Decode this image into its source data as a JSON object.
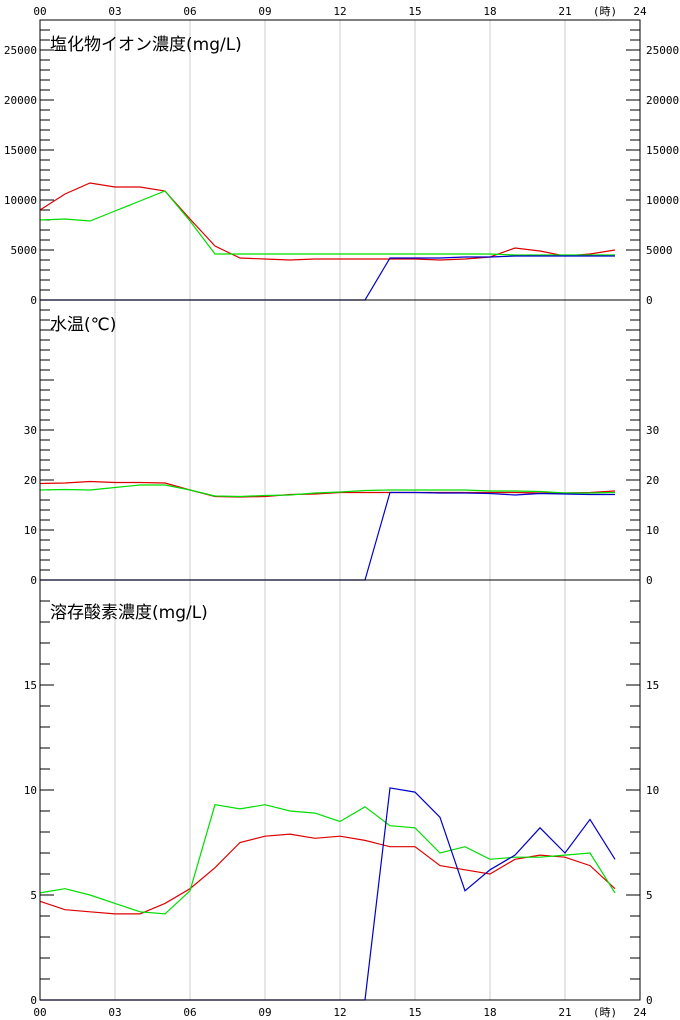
{
  "x_axis": {
    "ticks": [
      "00",
      "03",
      "06",
      "09",
      "12",
      "15",
      "18",
      "21",
      "24"
    ],
    "unit_label": "(時)"
  },
  "colors": {
    "red": "#dd0000",
    "green": "#00dd00",
    "blue": "#0000cc",
    "grid": "#cccccc"
  },
  "chart_data": [
    {
      "type": "line",
      "title": "塩化物イオン濃度(mg/L)",
      "x": [
        0,
        1,
        2,
        3,
        4,
        5,
        6,
        7,
        8,
        9,
        10,
        11,
        12,
        13,
        14,
        15,
        16,
        17,
        18,
        19,
        20,
        21,
        22,
        23
      ],
      "ylim": [
        0,
        28000
      ],
      "yticks": [
        0,
        5000,
        10000,
        15000,
        20000,
        25000
      ],
      "series": [
        {
          "color": "red",
          "values": [
            9000,
            10600,
            11700,
            11300,
            11300,
            10900,
            8100,
            5400,
            4200,
            4100,
            4000,
            4100,
            4100,
            4100,
            4100,
            4100,
            4000,
            4100,
            4300,
            5200,
            4900,
            4400,
            4600,
            5000
          ]
        },
        {
          "color": "green",
          "values": [
            8000,
            8100,
            7900,
            8900,
            9900,
            10900,
            7900,
            4600,
            4600,
            4600,
            4600,
            4600,
            4600,
            4600,
            4600,
            4600,
            4600,
            4600,
            4600,
            4500,
            4500,
            4500,
            4500,
            4500
          ]
        },
        {
          "color": "blue",
          "values": [
            0,
            0,
            0,
            0,
            0,
            0,
            0,
            0,
            0,
            0,
            0,
            0,
            0,
            0,
            4200,
            4200,
            4200,
            4300,
            4300,
            4400,
            4400,
            4400,
            4400,
            4400
          ]
        }
      ]
    },
    {
      "type": "line",
      "title": "水温(℃)",
      "x": [
        0,
        1,
        2,
        3,
        4,
        5,
        6,
        7,
        8,
        9,
        10,
        11,
        12,
        13,
        14,
        15,
        16,
        17,
        18,
        19,
        20,
        21,
        22,
        23
      ],
      "ylim": [
        0,
        56
      ],
      "yticks": [
        0,
        10,
        20,
        30
      ],
      "series": [
        {
          "color": "red",
          "values": [
            19.3,
            19.4,
            19.7,
            19.5,
            19.5,
            19.4,
            18.0,
            16.7,
            16.6,
            16.7,
            17.1,
            17.2,
            17.5,
            17.5,
            17.5,
            17.5,
            17.5,
            17.5,
            17.5,
            17.5,
            17.4,
            17.4,
            17.5,
            17.8
          ]
        },
        {
          "color": "green",
          "values": [
            18.0,
            18.1,
            18.0,
            18.5,
            19.0,
            19.0,
            18.0,
            16.8,
            16.7,
            16.9,
            17.0,
            17.4,
            17.6,
            17.9,
            18.0,
            18.0,
            18.0,
            18.0,
            17.8,
            17.8,
            17.7,
            17.4,
            17.4,
            17.5
          ]
        },
        {
          "color": "blue",
          "values": [
            0,
            0,
            0,
            0,
            0,
            0,
            0,
            0,
            0,
            0,
            0,
            0,
            0,
            0,
            17.5,
            17.5,
            17.4,
            17.4,
            17.3,
            17.0,
            17.3,
            17.2,
            17.1,
            17.1
          ]
        }
      ]
    },
    {
      "type": "line",
      "title": "溶存酸素濃度(mg/L)",
      "x": [
        0,
        1,
        2,
        3,
        4,
        5,
        6,
        7,
        8,
        9,
        10,
        11,
        12,
        13,
        14,
        15,
        16,
        17,
        18,
        19,
        20,
        21,
        22,
        23
      ],
      "ylim": [
        0,
        20
      ],
      "yticks": [
        0,
        5,
        10,
        15
      ],
      "series": [
        {
          "color": "red",
          "values": [
            4.7,
            4.3,
            4.2,
            4.1,
            4.1,
            4.6,
            5.3,
            6.3,
            7.5,
            7.8,
            7.9,
            7.7,
            7.8,
            7.6,
            7.3,
            7.3,
            6.4,
            6.2,
            6.0,
            6.7,
            6.9,
            6.8,
            6.4,
            5.3
          ]
        },
        {
          "color": "green",
          "values": [
            5.1,
            5.3,
            5.0,
            4.6,
            4.2,
            4.1,
            5.2,
            9.3,
            9.1,
            9.3,
            9.0,
            8.9,
            8.5,
            9.2,
            8.3,
            8.2,
            7.0,
            7.3,
            6.7,
            6.8,
            6.8,
            6.9,
            7.0,
            5.1
          ]
        },
        {
          "color": "blue",
          "values": [
            0,
            0,
            0,
            0,
            0,
            0,
            0,
            0,
            0,
            0,
            0,
            0,
            0,
            0,
            10.1,
            9.9,
            8.7,
            5.2,
            6.2,
            6.9,
            8.2,
            7.0,
            8.6,
            6.7
          ]
        }
      ]
    }
  ]
}
